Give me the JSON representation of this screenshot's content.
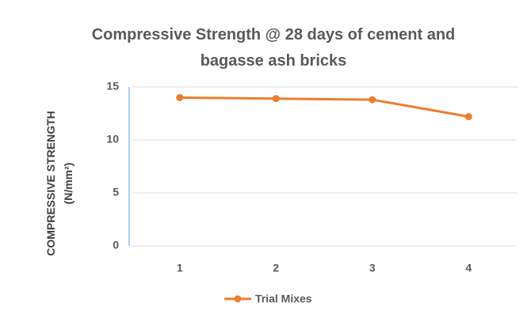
{
  "chart_data": {
    "type": "line",
    "title": "Compressive Strength @ 28 days of cement and bagasse ash bricks",
    "y_label": "COMPRESSIVE STRENGTH (N/mm²)",
    "categories": [
      "1",
      "2",
      "3",
      "4"
    ],
    "series": [
      {
        "name": "Trial Mixes",
        "color": "#ed7d31",
        "values": [
          14.0,
          13.9,
          13.8,
          12.2
        ]
      }
    ],
    "ylim": [
      0,
      15
    ],
    "yticks": [
      0,
      5,
      10,
      15
    ],
    "grid": true,
    "legend": "bottom"
  }
}
